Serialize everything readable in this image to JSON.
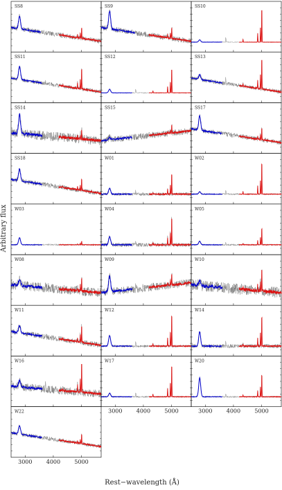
{
  "chart_data": {
    "type": "line",
    "xlabel": "Rest−wavelength (Å)",
    "ylabel": "Arbitrary flux",
    "xlim": [
      2500,
      5700
    ],
    "x_ticks": [
      3000,
      4000,
      5000
    ],
    "x_tick_labels": [
      "3000",
      "4000",
      "5000"
    ],
    "series_legend": [
      {
        "role": "observed spectrum",
        "color": "#7f7f7f"
      },
      {
        "role": "blue-side fit",
        "color": "#0000cc"
      },
      {
        "role": "red-side fit",
        "color": "#dd1111"
      }
    ],
    "panels": [
      {
        "label": "SS8",
        "shape": "qso",
        "red_peak": 0.3,
        "blue_peak": 0.55,
        "noise": 0.06,
        "blue_end": 3550
      },
      {
        "label": "SS9",
        "shape": "qso",
        "red_peak": 0.3,
        "blue_peak": 0.75,
        "noise": 0.07,
        "blue_end": 3700
      },
      {
        "label": "SS10",
        "shape": "flat",
        "red_peak": 0.9,
        "blue_peak": 0.1,
        "noise": 0.01,
        "blue_end": 3600
      },
      {
        "label": "SS11",
        "shape": "qso",
        "red_peak": 0.55,
        "blue_peak": 0.55,
        "noise": 0.05,
        "blue_end": 3600
      },
      {
        "label": "SS12",
        "shape": "flat",
        "red_peak": 0.65,
        "blue_peak": 0.15,
        "noise": 0.01,
        "blue_end": 3600
      },
      {
        "label": "SS13",
        "shape": "qso",
        "red_peak": 0.85,
        "blue_peak": 0.2,
        "noise": 0.05,
        "blue_end": 3600
      },
      {
        "label": "SS14",
        "shape": "noisy",
        "red_peak": 0.25,
        "blue_peak": 0.8,
        "noise": 0.12,
        "blue_end": 3600
      },
      {
        "label": "SS15",
        "shape": "rise",
        "red_peak": 0.2,
        "blue_peak": 0.1,
        "noise": 0.08,
        "blue_end": 3600
      },
      {
        "label": "SS17",
        "shape": "qso",
        "red_peak": 0.3,
        "blue_peak": 0.6,
        "noise": 0.06,
        "blue_end": 3600
      },
      {
        "label": "SS18",
        "shape": "qso",
        "red_peak": 0.3,
        "blue_peak": 0.5,
        "noise": 0.06,
        "blue_end": 3600
      },
      {
        "label": "W01",
        "shape": "flat",
        "red_peak": 0.55,
        "blue_peak": 0.25,
        "noise": 0.04,
        "blue_end": 3600
      },
      {
        "label": "W02",
        "shape": "flat",
        "red_peak": 0.85,
        "blue_peak": 0.1,
        "noise": 0.02,
        "blue_end": 3600
      },
      {
        "label": "W03",
        "shape": "flat",
        "red_peak": 0.1,
        "blue_peak": 0.3,
        "noise": 0.02,
        "blue_end": 3600
      },
      {
        "label": "W04",
        "shape": "flat",
        "red_peak": 0.75,
        "blue_peak": 0.35,
        "noise": 0.05,
        "blue_end": 3600
      },
      {
        "label": "W05",
        "shape": "flat",
        "red_peak": 0.45,
        "blue_peak": 0.15,
        "noise": 0.02,
        "blue_end": 3600
      },
      {
        "label": "W08",
        "shape": "noisy",
        "red_peak": 0.35,
        "blue_peak": 0.25,
        "noise": 0.12,
        "blue_end": 3600
      },
      {
        "label": "W09",
        "shape": "rise",
        "red_peak": 0.3,
        "blue_peak": 0.7,
        "noise": 0.1,
        "blue_end": 3600
      },
      {
        "label": "W10",
        "shape": "noisy",
        "red_peak": 0.6,
        "blue_peak": 0.2,
        "noise": 0.14,
        "blue_end": 3600
      },
      {
        "label": "W11",
        "shape": "qso",
        "red_peak": 0.45,
        "blue_peak": 0.3,
        "noise": 0.07,
        "blue_end": 3600
      },
      {
        "label": "W12",
        "shape": "flat",
        "red_peak": 0.85,
        "blue_peak": 0.45,
        "noise": 0.03,
        "blue_end": 3600
      },
      {
        "label": "W14",
        "shape": "flat",
        "red_peak": 0.8,
        "blue_peak": 0.6,
        "noise": 0.05,
        "blue_end": 3600
      },
      {
        "label": "W16",
        "shape": "noisy",
        "red_peak": 0.85,
        "blue_peak": 0.25,
        "noise": 0.1,
        "blue_end": 3600
      },
      {
        "label": "W17",
        "shape": "flat",
        "red_peak": 0.85,
        "blue_peak": 0.15,
        "noise": 0.02,
        "blue_end": 3600
      },
      {
        "label": "W20",
        "shape": "flat",
        "red_peak": 0.6,
        "blue_peak": 0.8,
        "noise": 0.02,
        "blue_end": 3600
      },
      {
        "label": "W22",
        "shape": "qso",
        "red_peak": 0.25,
        "blue_peak": 0.35,
        "noise": 0.05,
        "blue_end": 3600
      }
    ]
  }
}
